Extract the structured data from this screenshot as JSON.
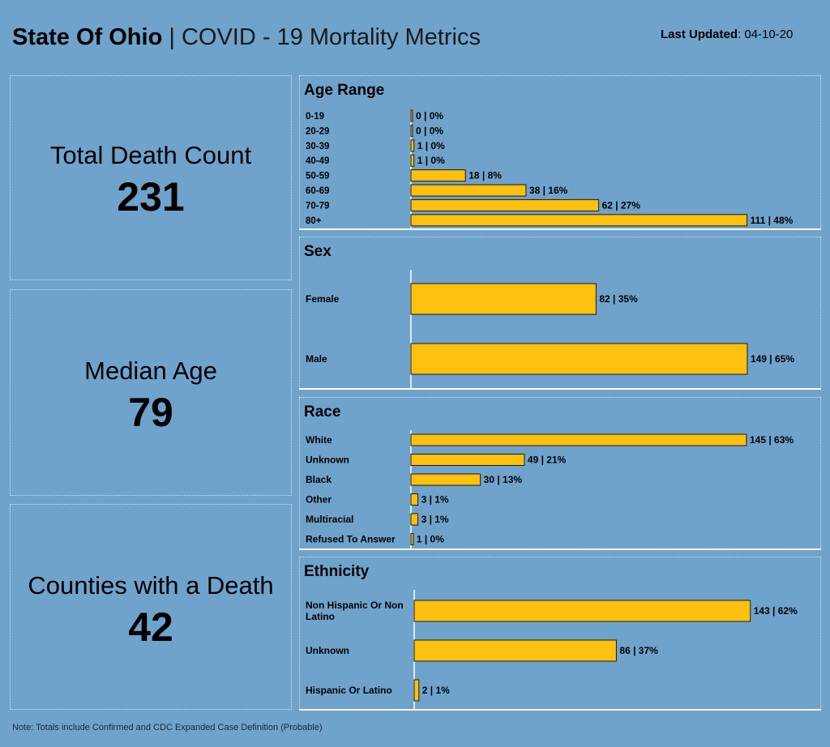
{
  "header": {
    "title_bold": "State Of Ohio",
    "title_sep": " | ",
    "title_rest": "COVID - 19 Mortality Metrics",
    "updated_label": "Last Updated",
    "updated_sep": ": ",
    "updated_value": "04-10-20"
  },
  "kpis": [
    {
      "label": "Total Death Count",
      "value": "231"
    },
    {
      "label": "Median Age",
      "value": "79"
    },
    {
      "label": "Counties with a Death",
      "value": "42"
    }
  ],
  "colors": {
    "bar": "#fcc00e",
    "background": "#6fa3cc"
  },
  "chart_data": [
    {
      "type": "bar",
      "orientation": "horizontal",
      "title": "Age Range",
      "categories": [
        "0-19",
        "20-29",
        "30-39",
        "40-49",
        "50-59",
        "60-69",
        "70-79",
        "80+"
      ],
      "values": [
        0,
        0,
        1,
        1,
        18,
        38,
        62,
        111
      ],
      "labels": [
        "0 | 0%",
        "0 | 0%",
        "1 | 0%",
        "1 | 0%",
        "18 | 8%",
        "38 | 16%",
        "62 | 27%",
        "111 | 48%"
      ]
    },
    {
      "type": "bar",
      "orientation": "horizontal",
      "title": "Sex",
      "categories": [
        "Female",
        "Male"
      ],
      "values": [
        82,
        149
      ],
      "labels": [
        "82 | 35%",
        "149 | 65%"
      ]
    },
    {
      "type": "bar",
      "orientation": "horizontal",
      "title": "Race",
      "categories": [
        "White",
        "Unknown",
        "Black",
        "Other",
        "Multiracial",
        "Refused To Answer"
      ],
      "values": [
        145,
        49,
        30,
        3,
        3,
        1
      ],
      "labels": [
        "145 | 63%",
        "49 | 21%",
        "30 | 13%",
        "3 | 1%",
        "3 | 1%",
        "1 | 0%"
      ]
    },
    {
      "type": "bar",
      "orientation": "horizontal",
      "title": "Ethnicity",
      "categories": [
        "Non Hispanic Or Non Latino",
        "Unknown",
        "Hispanic Or Latino"
      ],
      "values": [
        143,
        86,
        2
      ],
      "labels": [
        "143 | 62%",
        "86 | 37%",
        "2 | 1%"
      ]
    }
  ],
  "note": "Note: Totals include Confirmed and CDC Expanded Case Definition (Probable)"
}
